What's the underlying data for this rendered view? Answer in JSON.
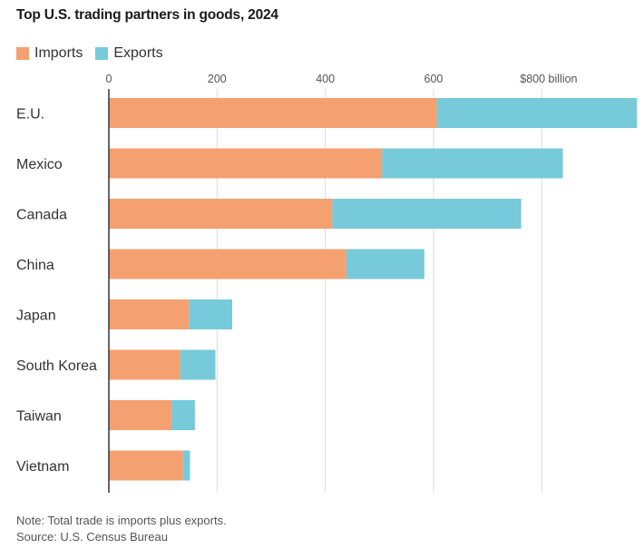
{
  "chart_data": {
    "type": "bar",
    "orientation": "horizontal",
    "stacked": true,
    "title": "Top U.S. trading partners in goods, 2024",
    "categories": [
      "E.U.",
      "Mexico",
      "Canada",
      "China",
      "Japan",
      "South Korea",
      "Taiwan",
      "Vietnam"
    ],
    "series": [
      {
        "name": "Imports",
        "color": "#f5a070",
        "values": [
          606,
          505,
          413,
          439,
          148,
          132,
          116,
          137
        ]
      },
      {
        "name": "Exports",
        "color": "#76cad9",
        "values": [
          370,
          334,
          349,
          144,
          80,
          65,
          43,
          13
        ]
      }
    ],
    "xlim": [
      0,
      980
    ],
    "xticks": [
      {
        "value": 0,
        "label": "0"
      },
      {
        "value": 200,
        "label": "200"
      },
      {
        "value": 400,
        "label": "400"
      },
      {
        "value": 600,
        "label": "600"
      },
      {
        "value": 800,
        "label": "$800 billion"
      }
    ],
    "grid": true,
    "legend_position": "top-left"
  },
  "notes": {
    "note": "Note: Total trade is imports plus exports.",
    "source": "Source: U.S. Census Bureau"
  }
}
